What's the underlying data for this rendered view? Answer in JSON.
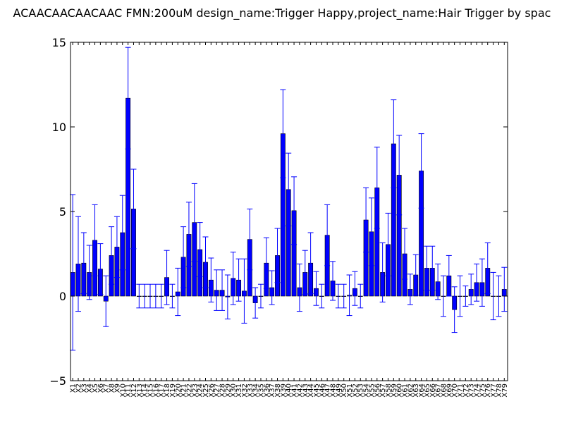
{
  "chart_data": {
    "type": "bar",
    "title": "ACAACAACAACAAC  FMN:200uM  design_name:Trigger Happy,project_name:Hair Trigger by spac",
    "xlabel": "",
    "ylabel": "",
    "ylim": [
      -5,
      15
    ],
    "yticks": [
      "−5",
      "0",
      "5",
      "10",
      "15"
    ],
    "grid": false,
    "bar_color": "#0000ff",
    "error_color": "#0000ff",
    "categories": [
      "X1",
      "X2",
      "X3",
      "X4",
      "X5",
      "X6",
      "X7",
      "X8",
      "X9",
      "X10",
      "X11",
      "X12",
      "X13",
      "X14",
      "X15",
      "X16",
      "X17",
      "X18",
      "X19",
      "X20",
      "X21",
      "X22",
      "X23",
      "X24",
      "X25",
      "X26",
      "X27",
      "X28",
      "X29",
      "X30",
      "X31",
      "X32",
      "X33",
      "X34",
      "X35",
      "X36",
      "X37",
      "X38",
      "X39",
      "X40",
      "X41",
      "X42",
      "X43",
      "X44",
      "X45",
      "X46",
      "X47",
      "X48",
      "X49",
      "X50",
      "X51",
      "X52",
      "X53",
      "X54",
      "X55",
      "X56",
      "X57",
      "X58",
      "X59",
      "X60",
      "X61",
      "X62",
      "X63",
      "X64",
      "X65",
      "X66",
      "X67",
      "X68",
      "X69",
      "X70",
      "X71",
      "X72",
      "X73",
      "X74",
      "X75",
      "X76",
      "X77",
      "X78",
      "X79"
    ],
    "values": [
      1.4,
      1.9,
      1.95,
      1.4,
      3.3,
      1.6,
      -0.3,
      2.4,
      2.9,
      3.75,
      11.7,
      5.15,
      0,
      0,
      0,
      0,
      0,
      1.1,
      0,
      0.25,
      2.3,
      3.65,
      4.35,
      2.75,
      2.0,
      0.95,
      0.35,
      0.35,
      -0.05,
      1.05,
      0.95,
      0.3,
      3.35,
      -0.4,
      0,
      1.95,
      0.5,
      2.4,
      9.6,
      6.3,
      5.05,
      0.5,
      1.4,
      1.95,
      0.45,
      0,
      3.6,
      0.9,
      0,
      0,
      0.05,
      0.45,
      0,
      4.5,
      3.8,
      6.4,
      1.4,
      3.05,
      9.0,
      7.15,
      2.5,
      0.4,
      1.25,
      7.4,
      1.65,
      1.65,
      0.85,
      0,
      1.2,
      -0.8,
      0,
      0,
      0.4,
      0.8,
      0.8,
      1.65,
      0,
      0,
      0.4
    ],
    "errors": [
      4.6,
      2.8,
      1.8,
      1.6,
      2.1,
      1.5,
      1.5,
      1.7,
      1.8,
      2.2,
      3.0,
      2.35,
      0.7,
      0.7,
      0.7,
      0.7,
      0.7,
      1.6,
      0.7,
      1.4,
      1.8,
      1.9,
      2.3,
      1.6,
      1.5,
      1.3,
      1.2,
      1.2,
      1.3,
      1.55,
      1.25,
      1.9,
      1.8,
      0.9,
      0.7,
      1.5,
      1.0,
      1.6,
      2.6,
      2.15,
      2.0,
      1.4,
      1.3,
      1.8,
      1.0,
      0.7,
      1.8,
      1.15,
      0.7,
      0.7,
      1.2,
      1.0,
      0.7,
      1.9,
      2.0,
      2.4,
      1.75,
      1.85,
      2.6,
      2.35,
      1.5,
      0.9,
      1.2,
      2.2,
      1.3,
      1.3,
      1.05,
      1.2,
      1.2,
      1.35,
      1.2,
      0.6,
      0.9,
      1.1,
      1.4,
      1.5,
      1.4,
      1.2,
      1.3
    ]
  }
}
